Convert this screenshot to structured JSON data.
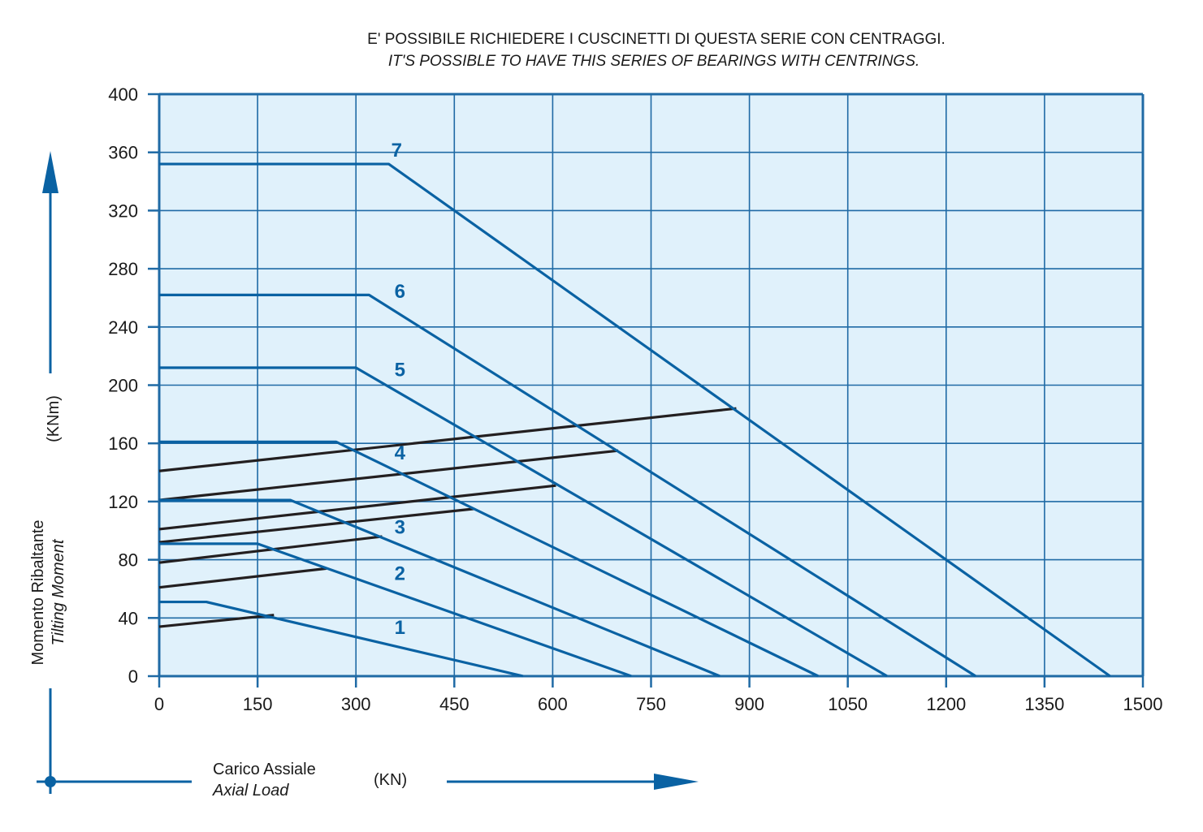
{
  "header": {
    "line1": "E' POSSIBILE RICHIEDERE I CUSCINETTI DI QUESTA SERIE CON CENTRAGGI.",
    "line2": "IT'S POSSIBLE TO HAVE THIS SERIES OF BEARINGS WITH CENTRINGS."
  },
  "axes": {
    "y_label_it": "Momento Ribaltante",
    "y_label_en": "Tilting Moment",
    "y_unit": "(KNm)",
    "x_label_it": "Carico Assiale",
    "x_label_en": "Axial Load",
    "x_unit": "(KN)"
  },
  "colors": {
    "plot_bg": "#e0f1fb",
    "grid": "#1f6aa5",
    "series": "#0a62a3",
    "limit": "#231f20",
    "text": "#1a1a1a",
    "label": "#0a62a3"
  },
  "chart_data": {
    "type": "line",
    "xlim": [
      0,
      1500
    ],
    "ylim": [
      0,
      400
    ],
    "xticks": [
      0,
      150,
      300,
      450,
      600,
      750,
      900,
      1050,
      1200,
      1350,
      1500
    ],
    "yticks": [
      0,
      40,
      80,
      120,
      160,
      200,
      240,
      280,
      320,
      360,
      400
    ],
    "grid": true,
    "series": [
      {
        "name": "1",
        "points": [
          [
            0,
            51
          ],
          [
            72,
            51
          ],
          [
            555,
            0
          ]
        ]
      },
      {
        "name": "2",
        "points": [
          [
            0,
            91
          ],
          [
            150,
            91
          ],
          [
            720,
            0
          ]
        ]
      },
      {
        "name": "3",
        "points": [
          [
            0,
            121
          ],
          [
            200,
            121
          ],
          [
            855,
            0
          ]
        ]
      },
      {
        "name": "4",
        "points": [
          [
            0,
            161
          ],
          [
            270,
            161
          ],
          [
            1005,
            0
          ]
        ]
      },
      {
        "name": "5",
        "points": [
          [
            0,
            212
          ],
          [
            300,
            212
          ],
          [
            1110,
            0
          ]
        ]
      },
      {
        "name": "6",
        "points": [
          [
            0,
            262
          ],
          [
            320,
            262
          ],
          [
            1245,
            0
          ]
        ]
      },
      {
        "name": "7",
        "points": [
          [
            0,
            352
          ],
          [
            350,
            352
          ],
          [
            1450,
            0
          ]
        ]
      }
    ],
    "limit_lines": [
      {
        "points": [
          [
            0,
            34
          ],
          [
            175,
            42
          ]
        ]
      },
      {
        "points": [
          [
            0,
            61
          ],
          [
            255,
            74
          ]
        ]
      },
      {
        "points": [
          [
            0,
            78
          ],
          [
            340,
            96
          ]
        ]
      },
      {
        "points": [
          [
            0,
            92
          ],
          [
            480,
            115
          ]
        ]
      },
      {
        "points": [
          [
            0,
            101
          ],
          [
            605,
            131
          ]
        ]
      },
      {
        "points": [
          [
            0,
            121
          ],
          [
            700,
            155
          ]
        ]
      },
      {
        "points": [
          [
            0,
            141
          ],
          [
            880,
            184
          ]
        ]
      }
    ],
    "series_labels": [
      {
        "text": "1",
        "x": 367,
        "y": 29
      },
      {
        "text": "2",
        "x": 367,
        "y": 66
      },
      {
        "text": "3",
        "x": 367,
        "y": 98
      },
      {
        "text": "4",
        "x": 367,
        "y": 149
      },
      {
        "text": "5",
        "x": 367,
        "y": 206
      },
      {
        "text": "6",
        "x": 367,
        "y": 260
      },
      {
        "text": "7",
        "x": 362,
        "y": 357
      }
    ]
  }
}
